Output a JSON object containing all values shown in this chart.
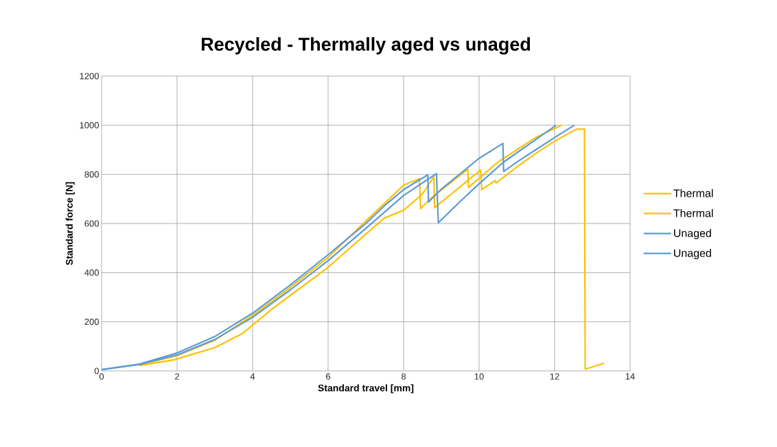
{
  "chart_data": {
    "type": "line",
    "title": "Recycled - Thermally aged vs unaged",
    "xlabel": "Standard travel [mm]",
    "ylabel": "Standard force [N]",
    "xlim": [
      0,
      14
    ],
    "ylim": [
      0,
      1200
    ],
    "xticks": [
      0,
      2,
      4,
      6,
      8,
      10,
      12,
      14
    ],
    "yticks": [
      0,
      200,
      400,
      600,
      800,
      1000,
      1200
    ],
    "grid": true,
    "legend": "right",
    "marker": "none",
    "line_style": "solid",
    "series": [
      {
        "name": "Thermal",
        "color": "#ffc000",
        "x": [
          1,
          2,
          3,
          4,
          5,
          6,
          7,
          8,
          8.42,
          8.45,
          8.7,
          9.7,
          9.72,
          10.5,
          11,
          11.5,
          12.18
        ],
        "values": [
          25,
          62,
          125,
          226,
          340,
          462,
          610,
          756,
          782,
          660,
          700,
          821,
          747,
          850,
          900,
          950,
          1000
        ]
      },
      {
        "name": "Thermal",
        "color": "#ffc000",
        "x": [
          1,
          1.92,
          3,
          3.73,
          4.5,
          5.2,
          5.96,
          6.8,
          7.49,
          8,
          8.5,
          8.8,
          8.82,
          10.04,
          10.07,
          10.43,
          10.45,
          11,
          11.5,
          12,
          12.58,
          12.79,
          12.81,
          13.31
        ],
        "values": [
          22,
          45,
          95,
          152,
          250,
          330,
          417,
          530,
          622,
          654,
          720,
          790,
          664,
          818,
          738,
          775,
          765,
          830,
          885,
          935,
          984,
          984,
          7,
          31
        ]
      },
      {
        "name": "Unaged",
        "color": "#5b9bd5",
        "x": [
          0,
          1,
          2,
          3,
          4,
          5,
          6,
          7,
          7.49,
          8,
          8.64,
          8.66,
          9,
          9.98,
          10.63,
          10.65,
          11,
          11.5,
          12,
          12.52
        ],
        "values": [
          5,
          28,
          73,
          140,
          235,
          350,
          473,
          600,
          672,
          738,
          798,
          687,
          740,
          863,
          926,
          812,
          850,
          900,
          950,
          1000
        ]
      },
      {
        "name": "Unaged",
        "color": "#5b9bd5",
        "x": [
          0,
          1,
          2,
          3,
          4,
          5,
          6,
          7,
          8,
          8.87,
          8.92,
          9.5,
          9.96,
          10.64,
          11.3,
          12.04
        ],
        "values": [
          5,
          26,
          65,
          128,
          218,
          330,
          449,
          580,
          714,
          803,
          603,
          690,
          756,
          849,
          920,
          1000
        ]
      }
    ]
  }
}
